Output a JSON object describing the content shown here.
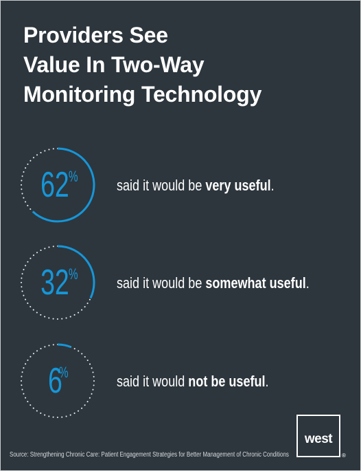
{
  "title": [
    "Providers See",
    "Value In Two-Way",
    "Monitoring Technology"
  ],
  "chart_data": {
    "type": "pie",
    "categories": [
      "very useful",
      "somewhat useful",
      "not be useful"
    ],
    "values": [
      62,
      32,
      6
    ],
    "unit": "%",
    "items": [
      {
        "value": 62,
        "value_text": "62",
        "symbol": "%",
        "prefix": "said it would be ",
        "emphasis": "very useful",
        "suffix": "."
      },
      {
        "value": 32,
        "value_text": "32",
        "symbol": "%",
        "prefix": "said it would be ",
        "emphasis": "somewhat useful",
        "suffix": "."
      },
      {
        "value": 6,
        "value_text": "6",
        "symbol": "%",
        "prefix": "said it would ",
        "emphasis": "not be useful",
        "suffix": "."
      }
    ]
  },
  "colors": {
    "background": "#2d363d",
    "accent": "#1696d8",
    "dots": "#e8ebed",
    "text": "#ffffff"
  },
  "source": "Source: Strengthening Chronic Care: Patient Engagement Strategies for Better Management of Chronic Conditions",
  "logo": {
    "text": "west",
    "mark": "®"
  }
}
